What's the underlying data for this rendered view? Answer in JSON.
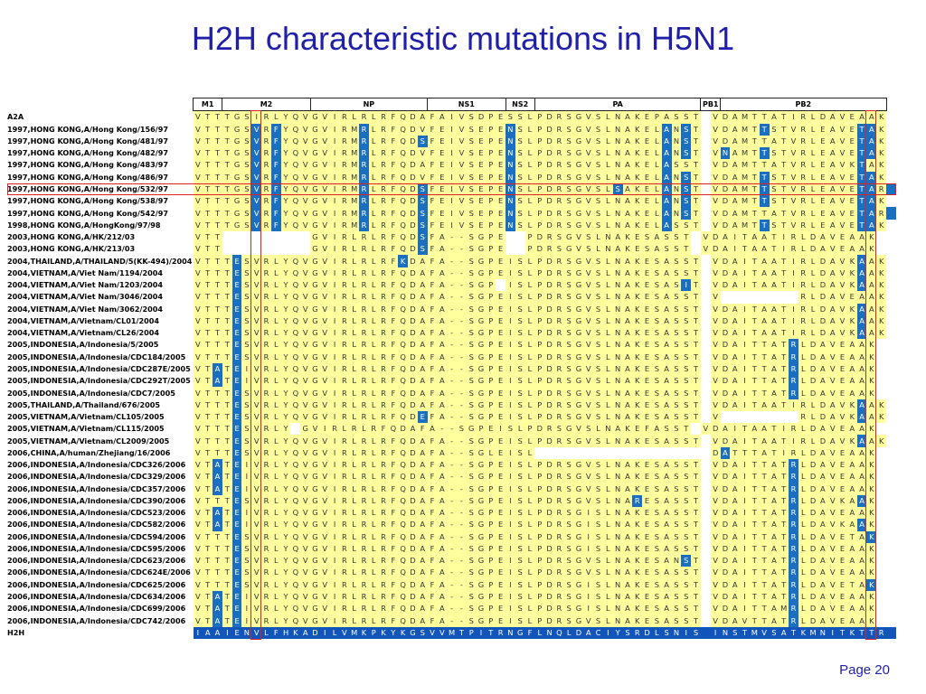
{
  "title": "H2H characteristic mutations in H5N1",
  "page_number": "Page 20",
  "headers": [
    {
      "label": "M1",
      "span": 3
    },
    {
      "label": "M2",
      "span": 9
    },
    {
      "label": "NP",
      "span": 12
    },
    {
      "label": "NS1",
      "span": 8
    },
    {
      "label": "NS2",
      "span": 3
    },
    {
      "label": "PA",
      "span": 17
    },
    {
      "label": "PB1",
      "span": 2
    },
    {
      "label": "PB2",
      "span": 17
    }
  ],
  "highlight_row": 6,
  "highlight_columns": [
    6,
    69
  ],
  "rows": [
    {
      "label": "A2A",
      "seq": "VTTTGSIRLYQVGVIRLRLRFQDAFAIVSDPESSLPDRSGVSLNAKEPASST VDAMTTATIRLDAVEAAK"
    },
    {
      "label": "1997,HONG KONG,A/Hong Kong/156/97",
      "seq": "VTTTGSVRFYQVGVIRMRLRFQDVFEIVSEPENSLPDRSGVSLNAKELANST VDAMTTSTVRLEAVETAK",
      "blue": [
        6,
        8,
        17,
        32,
        48,
        50,
        58,
        68,
        69
      ]
    },
    {
      "label": "1997,HONG KONG,A/Hong Kong/481/97",
      "seq": "VTTTGSVRFYQVGVIRMRLRFQDSFEIVSEPENSLPDRSGVSLNAKELANST VDAMTTATVRLEAVETAK",
      "blue": [
        6,
        8,
        17,
        23,
        32,
        48,
        50,
        68,
        69
      ]
    },
    {
      "label": "1997,HONG KONG,A/Hong Kong/482/97",
      "seq": "VTTTGSVRFYQVGVIRMRLRFQDVFEIVSEPENSLPDRSGVSLNAKELANST VNAMTTSTVRLEAVETAK",
      "blue": [
        6,
        8,
        17,
        32,
        48,
        50,
        54,
        58,
        68,
        69
      ]
    },
    {
      "label": "1997,HONG KONG,A/Hong Kong/483/97",
      "seq": "VTTTGSVRFYQVGVIRMRLRFQDAFEIVSEPENSLPDRSGVSLNAKELASST VDAMTTATVRLEAVKTAK",
      "blue": [
        6,
        8,
        17,
        32,
        48,
        68
      ]
    },
    {
      "label": "1997,HONG KONG,A/Hong Kong/486/97",
      "seq": "VTTTGSVRFYQVGVIRMRLRFQDVFEIVSEPENSLPDRSGVSLNAKELANST VDAMTTSTVRLEAVETAK",
      "blue": [
        6,
        8,
        17,
        32,
        48,
        50,
        58,
        68,
        69
      ]
    },
    {
      "label": "1997,HONG KONG,A/Hong Kong/532/97",
      "seq": "VTTTGSVRFYQVGVIRMRLRFQDSFEIVSEPENSLPDRSGVSLSAKELANST VDAMTTSTVRLEAVETAR",
      "blue": [
        6,
        8,
        17,
        23,
        32,
        43,
        48,
        50,
        58,
        68,
        69,
        71
      ]
    },
    {
      "label": "1997,HONG KONG,A/Hong Kong/538/97",
      "seq": "VTTTGSVRFYQVGVIRMRLRFQDSFEIVSEPENSLPDRSGVSLNAKELANST VDAMTTSTVRLEAVETAK",
      "blue": [
        6,
        8,
        17,
        23,
        32,
        48,
        50,
        58,
        68,
        69
      ]
    },
    {
      "label": "1997,HONG KONG,A/Hong Kong/542/97",
      "seq": "VTTTGSVRFYQVGVIRMRLRFQDSFEIVSEPENSLPDRSGVSLNAKELANST VDAMTTATVRLEAVETAR",
      "blue": [
        6,
        8,
        17,
        23,
        32,
        48,
        50,
        68,
        69,
        71
      ]
    },
    {
      "label": "1998,HONG KONG,A/HongKong/97/98",
      "seq": "VTTTGSVRFYQVGVIRMRLRFQDSFEIVSEPENSLPDRSGVSLNAKELASST VDAMTTSTVRLEAVETAK",
      "blue": [
        6,
        8,
        17,
        23,
        32,
        48,
        58,
        68,
        69
      ]
    },
    {
      "label": "2003,HONG KONG,A/HK/212/03",
      "seq": "VTT         GVIRLRLRFQDSFA--SGPE  PDRSGVSLNAKESASST VDAITAATIRLDAVEAAK",
      "blue": [
        23
      ]
    },
    {
      "label": "2003,HONG KONG,A/HK/213/03",
      "seq": "VTT         GVIRLRLRFQDSFA--SGPE  PDRSGVSLNAKESASST VDAITAATIRLDAVEAAK",
      "blue": [
        23
      ]
    },
    {
      "label": "2004,THAILAND,A/THAILAND/5(KK-494)/2004",
      "seq": "VTTTESVRLYQVGVIRLRLRFKDAFA--SGPEISLPDRSGVSLNAKESASST VDAITAATIRLDAVKAAK",
      "blue": [
        4,
        21,
        68
      ]
    },
    {
      "label": "2004,VIETNAM,A/Viet Nam/1194/2004",
      "seq": "VTTTESVRLYQVGVIRLRLRFQDAFA--SGPEISLPDRSGVSLNAKESASST VDAITAATIRLDAVKAAK",
      "blue": [
        4,
        68
      ]
    },
    {
      "label": "2004,VIETNAM,A/Viet Nam/1203/2004",
      "seq": "VTTTESVRLYQVGVIRLRLRFQDAFA--SGP ISLPDRSGVSLNAKESASIT VDAITAATIRLDAVKAAK",
      "blue": [
        4,
        50,
        68
      ]
    },
    {
      "label": "2004,VIETNAM,A/Viet Nam/3046/2004",
      "seq": "VTTTESVRLYQVGVIRLRLRFQDAFA--SGPEISLPDRSGVSLNAKESASST V        RLDAVEAAK",
      "blue": [
        4
      ]
    },
    {
      "label": "2004,VIETNAM,A/Viet Nam/3062/2004",
      "seq": "VTTTESVRLYQVGVIRLRLRFQDAFA--SGPEISLPDRSGVSLNAKESASST VDAITAATIRLDAVKAAK",
      "blue": [
        4,
        68
      ]
    },
    {
      "label": "2004,VIETNAM,A/Vietnam/CL01/2004",
      "seq": "VTTTESVRLYQVGVIRLRLRFQDAFA--SGPEISLPDRSGVSLNAKESASST VDAITAATIRLDAVKAAK",
      "blue": [
        4,
        68
      ]
    },
    {
      "label": "2004,VIETNAM,A/Vietnam/CL26/2004",
      "seq": "VTTTESVRLYQVGVIRLRLRFQDAFA--SGPEISLPDRSGVSLNAKESASST VDAITAATIRLDAVKAAK",
      "blue": [
        4,
        68
      ]
    },
    {
      "label": "2005,INDONESIA,A/Indonesia/5/2005",
      "seq": "VTTTESVRLYQVGVIRLRLRFQDAFA--SGPEISLPDRSGVSLNAKESASST VDAITTATRLDAVEAAK",
      "blue": [
        4,
        61
      ]
    },
    {
      "label": "2005,INDONESIA,A/Indonesia/CDC184/2005",
      "seq": "VTTTESVRLYQVGVIRLRLRFQDAFA--SGPEISLPDRSGVSLNAKESASST VDAITTATRLDAVEAAK",
      "blue": [
        4,
        61
      ]
    },
    {
      "label": "2005,INDONESIA,A/Indonesia/CDC287E/2005",
      "seq": "VTATEIVRLYQVGVIRLRLRFQDAFA--SGPEISLPDRSGVSLNAKESASST VDAITTATRLDAVEAAK",
      "blue": [
        2,
        4,
        61
      ]
    },
    {
      "label": "2005,INDONESIA,A/Indonesia/CDC292T/2005",
      "seq": "VTATEIVRLYQVGVIRLRLRFQDAFA--SGPEISLPDRSGVSLNAKESASST VDAITTATRLDAVEAAK",
      "blue": [
        2,
        4,
        61
      ]
    },
    {
      "label": "2005,INDONESIA,A/Indonesia/CDC7/2005",
      "seq": "VTTTESVRLYQVGVIRLRLRFQDAFA--SGPEISLPDRSGVSLNAKESASST VDAITTATRLDAVEAAK",
      "blue": [
        4,
        61
      ]
    },
    {
      "label": "2005,THAILAND,A/Thailand/676/2005",
      "seq": "VTTTESVRLYQVGVIRLRLRFQDAFA--SGPEISLPDRSGVSLNAKESASST VDAITAATIRLDAVKAAK",
      "blue": [
        4,
        68
      ]
    },
    {
      "label": "2005,VIETNAM,A/Vietnam/CL105/2005",
      "seq": "VTTTESVRLYQVGVIRLRLRFQDEFA--SGPEISLPDRSGVSLNAKESASST V        RLDAVKAAK",
      "blue": [
        4,
        23,
        68
      ]
    },
    {
      "label": "2005,VIETNAM,A/Vietnam/CL115/2005",
      "seq": "VTTTESVRLY GVIRLRLRFQDAFA--SGPEISLPDRSGVSLNAKEFASST VDAITAATIRLDAVEAAK",
      "blue": [
        4
      ]
    },
    {
      "label": "2005,VIETNAM,A/Vietnam/CL2009/2005",
      "seq": "VTTTESVRLYQVGVIRLRLRFQDAFA--SGPEISLPDRSGVSLNAKESASST VDAITAATIRLDAVKAAK",
      "blue": [
        4,
        68
      ]
    },
    {
      "label": "2006,CHINA,A/human/Zhejiang/16/2006",
      "seq": "VTTTESVRLYQVGVIRLRLRFQDAFA--SGLEISL                  DATTTATIRLDAVEAAK",
      "blue": [
        4,
        54
      ]
    },
    {
      "label": "2006,INDONESIA,A/Indonesia/CDC326/2006",
      "seq": "VTATEIVRLYQVGVIRLRLRFQDAFA--SGPEISLPDRSGVSLNAKESASST VDAITTATRLDAVEAAK",
      "blue": [
        2,
        4,
        61
      ]
    },
    {
      "label": "2006,INDONESIA,A/Indonesia/CDC329/2006",
      "seq": "VTATEIVRLYQVGVIRLRLRFQDAFA--SGPEISLPDRSGVSLNAKESASST VDAITTATRLDAVEAAK",
      "blue": [
        2,
        4,
        61
      ]
    },
    {
      "label": "2006,INDONESIA,A/Indonesia/CDC357/2006",
      "seq": "VTATEIVRLYQVGVIRLRLRFQDAFA--SGPEISLPDRSGVSLNAKESASST VDAITTATRLDAVEAAK",
      "blue": [
        2,
        4,
        61
      ]
    },
    {
      "label": "2006,INDONESIA,A/Indonesia/CDC390/2006",
      "seq": "VTTTESVRLYQVGVIRLRLRFQDAFA--SGPEISLPDRSGVSLNARESASST VDAITTATRLDAVKAAK",
      "blue": [
        4,
        45,
        61,
        68
      ]
    },
    {
      "label": "2006,INDONESIA,A/Indonesia/CDC523/2006",
      "seq": "VTATEIVRLYQVGVIRLRLRFQDAFA--SGPEISLPDRSGISLNAKESASST VDAITTATRLDAVEAAK",
      "blue": [
        2,
        4,
        61
      ]
    },
    {
      "label": "2006,INDONESIA,A/Indonesia/CDC582/2006",
      "seq": "VTATEIVRLYQVGVIRLRLRFQDAFA--SGPEISLPDRSGISLNAKESASST VDAITTATRLDAVKAAK",
      "blue": [
        2,
        4,
        61,
        68
      ]
    },
    {
      "label": "2006,INDONESIA,A/Indonesia/CDC594/2006",
      "seq": "VTTTESVRLYQVGVIRLRLRFQDAFA--SGPEISLPDRSGISLNAKESASST VDAITTATRLDAVETAK",
      "blue": [
        4,
        61,
        69
      ]
    },
    {
      "label": "2006,INDONESIA,A/Indonesia/CDC595/2006",
      "seq": "VTTTESVRLYQVGVIRLRLRFQDAFA--SGPEISLPDRSGISLNAKESASST VDAITTATRLDAVEAAK",
      "blue": [
        4,
        61
      ]
    },
    {
      "label": "2006,INDONESIA,A/Indonesia/CDC623/2006",
      "seq": "VTTTESVRLYQVGVIRLRLRFQDAFA--SGPEISLPDRSGVSLNAKESANST VDAITTATRLDAVEAAK",
      "blue": [
        4,
        50,
        61
      ]
    },
    {
      "label": "2006,INDONESIA,A/Indonesia/CDC624E/2006",
      "seq": "VTTTESVRLYQVGVIRLRLRFQDAFA--SGPEISLPDRSGVSLNAKESASST VDAITTATRLDAVEAAK",
      "blue": [
        4,
        61
      ]
    },
    {
      "label": "2006,INDONESIA,A/Indonesia/CDC625/2006",
      "seq": "VTTTESVRLYQVGVIRLRLRFQDAFA--SGPEISLPDRSGISLNAKESASST VDAITTATRLDAVETAK",
      "blue": [
        4,
        61,
        69
      ]
    },
    {
      "label": "2006,INDONESIA,A/Indonesia/CDC634/2006",
      "seq": "VTATEIVRLYQVGVIRLRLRFQDAFA--SGPEISLPDRSGISLNAKESASST VDAITTATRLDAVEAAK",
      "blue": [
        2,
        4,
        61
      ]
    },
    {
      "label": "2006,INDONESIA,A/Indonesia/CDC699/2006",
      "seq": "VTATEIVRLYQVGVIRLRLRFQDAFA--SGPEISLPDRSGISLNAKESASST VDAITTAMRLDAVEAAK",
      "blue": [
        2,
        4,
        61
      ]
    },
    {
      "label": "2006,INDONESIA,A/Indonesia/CDC742/2006",
      "seq": "VTATEIVRLYQVGVIRLRLRFQDAFA--SGPEISLPDRSGVSLNAKESASST VDAVTTATRLDAVEAAK",
      "blue": [
        2,
        4,
        61
      ]
    },
    {
      "label": "H2H",
      "seq": "IAAIENVLFHKADILVMKPKYKGSVVMTPITRNGFLNQLDACIYSRDLSNIS INSTMVSATKMNITKTTR",
      "h2h": true
    }
  ]
}
